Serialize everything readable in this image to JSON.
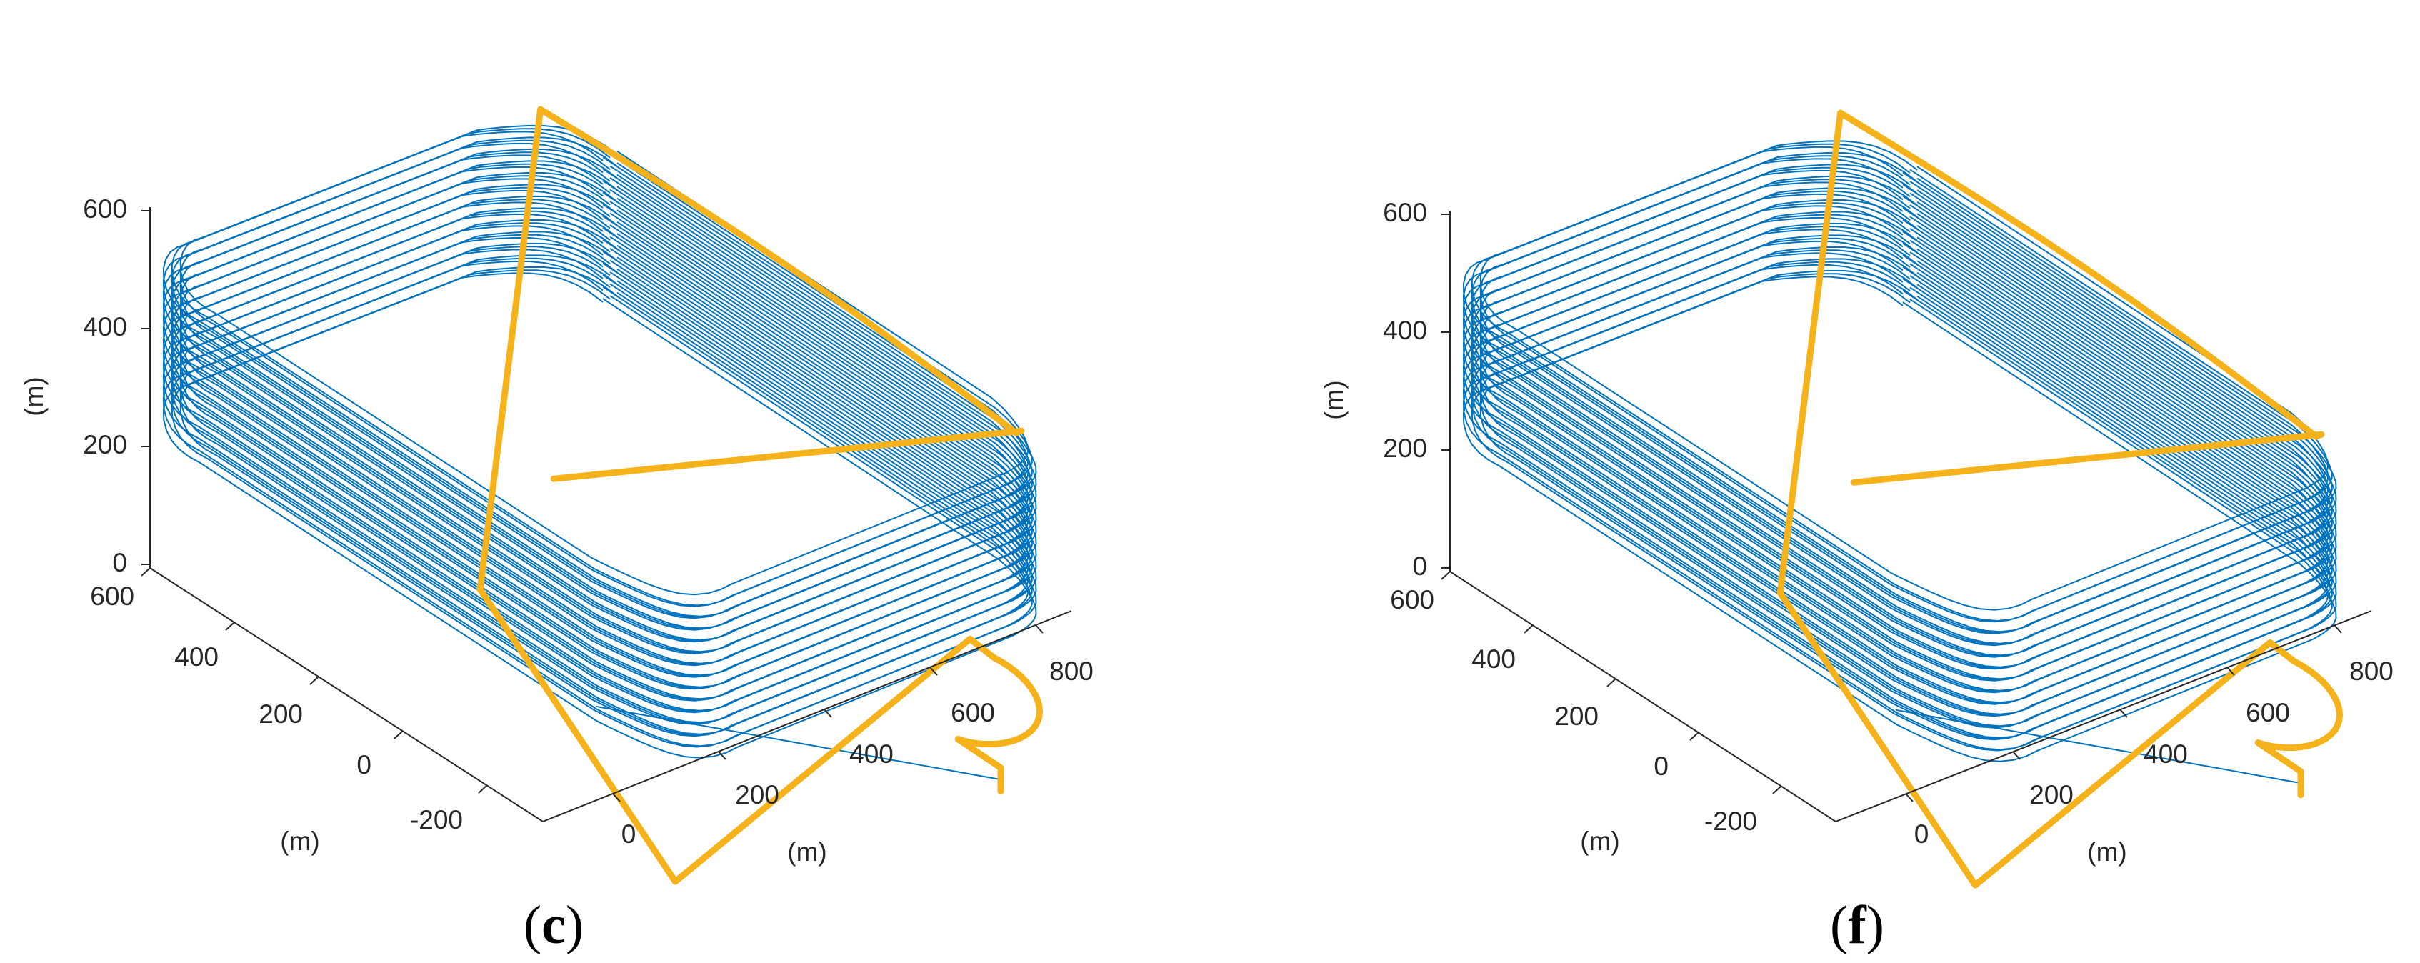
{
  "colors": {
    "lap_trajectory": "#0072BD",
    "highlight_trajectory": "#F5B21B",
    "axis": "#262626",
    "background": "#FFFFFF"
  },
  "chart_data": [
    {
      "type": "line",
      "panel_label": "c",
      "axes": {
        "x": {
          "unit": "(m)",
          "ticks": [
            "0",
            "200",
            "400",
            "600",
            "800"
          ],
          "range": [
            -100,
            900
          ]
        },
        "y": {
          "unit": "(m)",
          "ticks": [
            "-200",
            "0",
            "200",
            "400",
            "600"
          ],
          "range": [
            -300,
            650
          ]
        },
        "z": {
          "unit": "(m)",
          "ticks": [
            "0",
            "200",
            "400",
            "600"
          ],
          "range": [
            0,
            600
          ]
        }
      },
      "series": [
        {
          "color": "lap_trajectory",
          "laps": 13,
          "lap_altitudes_m": [
            300,
            320,
            340,
            360,
            380,
            400,
            420,
            440,
            460,
            480,
            500,
            520,
            540
          ]
        },
        {
          "color": "highlight_trajectory",
          "highlight": true
        }
      ]
    },
    {
      "type": "line",
      "panel_label": "f",
      "axes": {
        "x": {
          "unit": "(m)",
          "ticks": [
            "0",
            "200",
            "400",
            "600",
            "800"
          ],
          "range": [
            -100,
            900
          ]
        },
        "y": {
          "unit": "(m)",
          "ticks": [
            "-200",
            "0",
            "200",
            "400",
            "600"
          ],
          "range": [
            -300,
            650
          ]
        },
        "z": {
          "unit": "(m)",
          "ticks": [
            "0",
            "200",
            "400",
            "600"
          ],
          "range": [
            0,
            600
          ]
        }
      },
      "series": [
        {
          "color": "lap_trajectory",
          "laps": 12,
          "lap_altitudes_m": [
            300,
            320,
            340,
            360,
            380,
            400,
            420,
            440,
            460,
            480,
            500,
            520
          ]
        },
        {
          "color": "highlight_trajectory",
          "highlight": true
        }
      ]
    }
  ]
}
